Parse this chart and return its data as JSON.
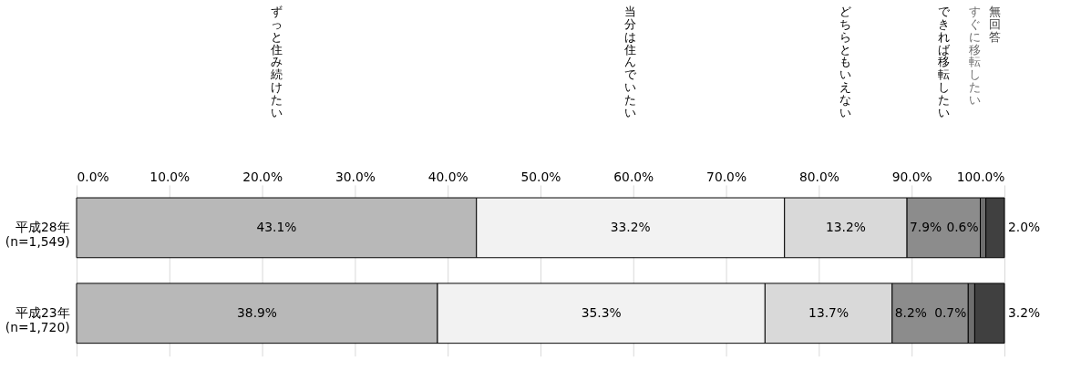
{
  "chart_data": {
    "type": "bar",
    "orientation": "horizontal",
    "stacked": true,
    "categories": [
      "平成28年\n(n=1,549)",
      "平成23年\n(n=1,720)"
    ],
    "series": [
      {
        "name": "ずっと住み続けたい",
        "color": "#b8b8b8",
        "values": [
          43.1,
          38.9
        ],
        "value_labels": [
          "43.1%",
          "38.9%"
        ]
      },
      {
        "name": "当分は住んでいたい",
        "color": "#f2f2f2",
        "values": [
          33.2,
          35.3
        ],
        "value_labels": [
          "33.2%",
          "35.3%"
        ]
      },
      {
        "name": "どちらともいえない",
        "color": "#d9d9d9",
        "values": [
          13.2,
          13.7
        ],
        "value_labels": [
          "13.2%",
          "13.7%"
        ]
      },
      {
        "name": "できれば移転したい",
        "color": "#8c8c8c",
        "values": [
          7.9,
          8.2
        ],
        "value_labels": [
          "7.9%",
          "8.2%"
        ]
      },
      {
        "name": "すぐに移転したい",
        "color": "#6e6e6e",
        "values": [
          0.6,
          0.7
        ],
        "value_labels": [
          "0.6%",
          "0.7%"
        ]
      },
      {
        "name": "無回答",
        "color": "#404040",
        "values": [
          2.0,
          3.2
        ],
        "value_labels": [
          "2.0%",
          "3.2%"
        ]
      }
    ],
    "xlim": [
      0,
      100
    ],
    "xticks": [
      {
        "value": 0,
        "label": "0.0%"
      },
      {
        "value": 10,
        "label": "10.0%"
      },
      {
        "value": 20,
        "label": "20.0%"
      },
      {
        "value": 30,
        "label": "30.0%"
      },
      {
        "value": 40,
        "label": "40.0%"
      },
      {
        "value": 50,
        "label": "50.0%"
      },
      {
        "value": 60,
        "label": "60.0%"
      },
      {
        "value": 70,
        "label": "70.0%"
      },
      {
        "value": 80,
        "label": "80.0%"
      },
      {
        "value": 90,
        "label": "90.0%"
      },
      {
        "value": 100,
        "label": "100.0%"
      }
    ],
    "grid": "x",
    "legend": false
  }
}
